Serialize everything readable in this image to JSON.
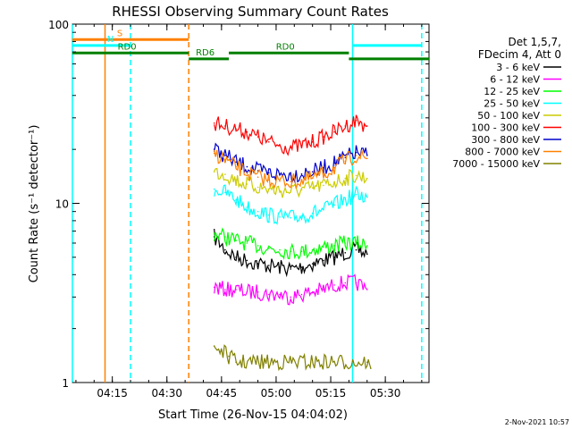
{
  "chart_data": {
    "type": "line",
    "title": "RHESSI Observing Summary Count Rates",
    "xlabel": "Start Time (26-Nov-15 04:04:02)",
    "ylabel": "Count Rate (s⁻¹ detector⁻¹)",
    "y_scale": "log",
    "ylim": [
      1,
      100
    ],
    "xlim": [
      "04:04:02",
      "05:42:00"
    ],
    "x_ticks": [
      "04:15",
      "04:30",
      "04:45",
      "05:00",
      "05:15",
      "05:30"
    ],
    "y_ticks": [
      "1",
      "10",
      "100"
    ],
    "grid": false,
    "legend_position": "top-right",
    "legend_header": [
      "Det 1,5,7,",
      "FDecim 4, Att 0"
    ],
    "timestamp": "2-Nov-2021 10:57",
    "series": [
      {
        "name": "3 - 6 keV",
        "color": "#000000",
        "x": [
          "04:43",
          "04:46",
          "04:49",
          "04:52",
          "04:55",
          "04:58",
          "05:01",
          "05:04",
          "05:07",
          "05:10",
          "05:13",
          "05:16",
          "05:19",
          "05:22",
          "05:25"
        ],
        "y": [
          6.5,
          5.5,
          5.0,
          4.8,
          4.6,
          4.5,
          4.4,
          4.3,
          4.4,
          4.6,
          4.8,
          5.0,
          5.3,
          5.5,
          5.2
        ]
      },
      {
        "name": "6 - 12 keV",
        "color": "#ff00ff",
        "x": [
          "04:43",
          "04:46",
          "04:49",
          "04:52",
          "04:55",
          "04:58",
          "05:01",
          "05:04",
          "05:07",
          "05:10",
          "05:13",
          "05:16",
          "05:19",
          "05:22",
          "05:25"
        ],
        "y": [
          3.4,
          3.3,
          3.3,
          3.2,
          3.2,
          3.1,
          3.1,
          3.0,
          3.1,
          3.2,
          3.3,
          3.5,
          3.6,
          3.6,
          3.3
        ]
      },
      {
        "name": "12 - 25 keV",
        "color": "#00ff00",
        "x": [
          "04:43",
          "04:46",
          "04:49",
          "04:52",
          "04:55",
          "04:58",
          "05:01",
          "05:04",
          "05:07",
          "05:10",
          "05:13",
          "05:16",
          "05:19",
          "05:22",
          "05:25"
        ],
        "y": [
          6.8,
          6.5,
          6.2,
          6.0,
          5.8,
          5.6,
          5.5,
          5.4,
          5.4,
          5.5,
          5.7,
          5.8,
          6.0,
          6.0,
          5.8
        ]
      },
      {
        "name": "25 - 50 keV",
        "color": "#00ffff",
        "x": [
          "04:43",
          "04:46",
          "04:49",
          "04:52",
          "04:55",
          "04:58",
          "05:01",
          "05:04",
          "05:07",
          "05:10",
          "05:13",
          "05:16",
          "05:19",
          "05:22",
          "05:25"
        ],
        "y": [
          12.0,
          11.5,
          10.5,
          9.5,
          9.0,
          8.6,
          8.4,
          8.3,
          8.5,
          8.8,
          9.2,
          9.8,
          10.5,
          11.2,
          10.8
        ]
      },
      {
        "name": "50 - 100 keV",
        "color": "#cccc00",
        "x": [
          "04:43",
          "04:46",
          "04:49",
          "04:52",
          "04:55",
          "04:58",
          "05:01",
          "05:04",
          "05:07",
          "05:10",
          "05:13",
          "05:16",
          "05:19",
          "05:22",
          "05:25"
        ],
        "y": [
          15.0,
          14.5,
          13.5,
          12.8,
          12.3,
          12.0,
          11.8,
          11.7,
          11.9,
          12.2,
          12.6,
          13.2,
          13.8,
          14.3,
          13.8
        ]
      },
      {
        "name": "100 - 300 keV",
        "color": "#ff0000",
        "x": [
          "04:43",
          "04:46",
          "04:49",
          "04:52",
          "04:55",
          "04:58",
          "05:01",
          "05:04",
          "05:07",
          "05:10",
          "05:13",
          "05:16",
          "05:19",
          "05:22",
          "05:25"
        ],
        "y": [
          28.0,
          27.0,
          26.0,
          25.0,
          23.5,
          22.0,
          21.0,
          20.5,
          21.0,
          22.0,
          23.5,
          25.0,
          27.0,
          29.0,
          27.0
        ]
      },
      {
        "name": "300 - 800 keV",
        "color": "#0000cc",
        "x": [
          "04:43",
          "04:46",
          "04:49",
          "04:52",
          "04:55",
          "04:58",
          "05:01",
          "05:04",
          "05:07",
          "05:10",
          "05:13",
          "05:16",
          "05:19",
          "05:22",
          "05:25"
        ],
        "y": [
          20.0,
          18.5,
          17.0,
          16.0,
          15.2,
          14.8,
          14.5,
          14.4,
          14.6,
          15.0,
          15.8,
          16.8,
          18.0,
          19.2,
          18.5
        ]
      },
      {
        "name": "800 - 7000 keV",
        "color": "#ff8000",
        "x": [
          "04:43",
          "04:46",
          "04:49",
          "04:52",
          "04:55",
          "04:58",
          "05:01",
          "05:04",
          "05:07",
          "05:10",
          "05:13",
          "05:16",
          "05:19",
          "05:22",
          "05:25"
        ],
        "y": [
          19.0,
          17.5,
          16.0,
          14.8,
          14.0,
          13.5,
          13.3,
          13.2,
          13.4,
          13.8,
          14.6,
          15.8,
          17.2,
          18.5,
          17.8
        ]
      },
      {
        "name": "7000 - 15000 keV",
        "color": "#808000",
        "x": [
          "04:43",
          "04:45",
          "04:47",
          "04:49",
          "05:25",
          "05:26"
        ],
        "y": [
          1.6,
          1.5,
          1.4,
          1.3,
          1.3,
          1.2
        ]
      }
    ],
    "annotations": [
      {
        "label": "S",
        "color": "#ff8000",
        "x_start": "04:04:02",
        "x_end": "04:36:00",
        "y": 82
      },
      {
        "label": "N",
        "color": "#00ffff",
        "x_start": "04:04:02",
        "x_end": "04:20:00",
        "y": 76
      },
      {
        "label": "RD0",
        "color": "#008000",
        "x_start": "04:04:02",
        "x_end": "04:36:00",
        "y": 69
      },
      {
        "label": "RD6",
        "color": "#008000",
        "x_start": "04:36:00",
        "x_end": "04:47:00",
        "y": 64
      },
      {
        "label": "RD0",
        "color": "#008000",
        "x_start": "04:47:00",
        "x_end": "05:20:00",
        "y": 69
      },
      {
        "label": "",
        "color": "#008000",
        "x_start": "05:20:00",
        "x_end": "05:42:00",
        "y": 64
      },
      {
        "label": "",
        "color": "#00ffff",
        "x_start": "05:21:00",
        "x_end": "05:40:00",
        "y": 76
      }
    ],
    "vertical_lines": [
      {
        "x": "04:13:00",
        "color": "#ff8000",
        "style": "solid"
      },
      {
        "x": "04:20:00",
        "color": "#00ffff",
        "style": "dashed"
      },
      {
        "x": "04:36:00",
        "color": "#ff8000",
        "style": "dashed"
      },
      {
        "x": "05:21:00",
        "color": "#00ffff",
        "style": "solid"
      },
      {
        "x": "05:40:00",
        "color": "#00ffff",
        "style": "dashed"
      },
      {
        "x": "04:04:02",
        "color": "#00ffff",
        "style": "solid"
      }
    ]
  }
}
